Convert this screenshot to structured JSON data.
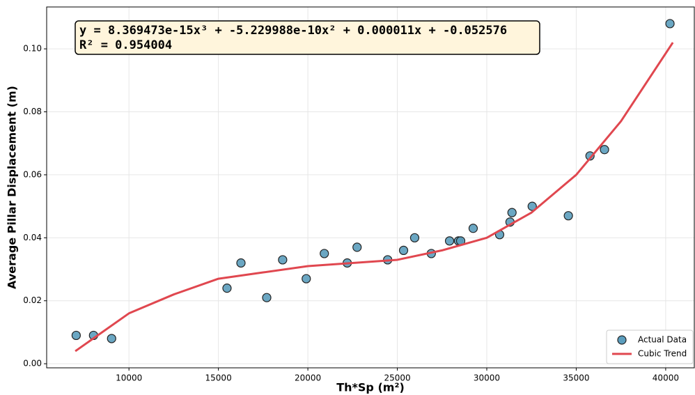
{
  "chart_data": {
    "type": "scatter",
    "annotations": [
      "y = 8.369473e-15x³ + -5.229988e-10x² + 0.000011x + -0.052576",
      "R² = 0.954004"
    ],
    "xlabel": "Th*Sp (m²)",
    "ylabel": "Average Pillar Displacement (m)",
    "xlim": [
      5400,
      41600
    ],
    "ylim": [
      -0.0013,
      0.1133
    ],
    "xticks": [
      10000,
      15000,
      20000,
      25000,
      30000,
      35000,
      40000
    ],
    "yticks": [
      {
        "value": 0,
        "label": "0.00"
      },
      0.02,
      0.04,
      0.06,
      0.08,
      {
        "value": 0.1,
        "label": "0.10"
      }
    ],
    "grid": true,
    "legend": "lower right",
    "series": [
      {
        "name": "Actual Data",
        "type": "scatter",
        "color": "#5b9dbd",
        "x": [
          7050,
          8020,
          9030,
          15480,
          16260,
          17700,
          18590,
          19910,
          20920,
          22200,
          22750,
          24460,
          25350,
          25970,
          26900,
          27920,
          28420,
          28540,
          29240,
          30720,
          31300,
          31410,
          32540,
          34560,
          35770,
          36580,
          40240
        ],
        "values": [
          0.009,
          0.009,
          0.008,
          0.024,
          0.032,
          0.021,
          0.033,
          0.027,
          0.035,
          0.032,
          0.037,
          0.033,
          0.036,
          0.04,
          0.035,
          0.039,
          0.039,
          0.039,
          0.043,
          0.041,
          0.045,
          0.048,
          0.05,
          0.047,
          0.066,
          0.068,
          0.108
        ]
      },
      {
        "name": "Cubic Trend",
        "type": "line",
        "color": "#e0474f",
        "x": [
          7000,
          10000,
          12500,
          15000,
          17500,
          20000,
          22500,
          25000,
          27500,
          30000,
          32500,
          35000,
          37500,
          40400
        ],
        "values": [
          0.004,
          0.016,
          0.022,
          0.027,
          0.029,
          0.031,
          0.032,
          0.033,
          0.036,
          0.04,
          0.048,
          0.06,
          0.077,
          0.102
        ]
      }
    ]
  }
}
